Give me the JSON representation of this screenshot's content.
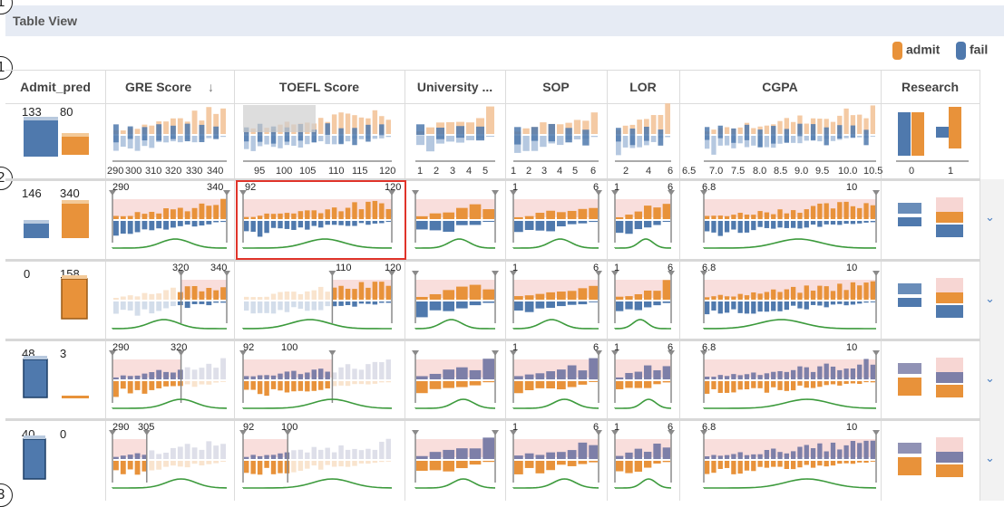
{
  "panel_title": "Table View",
  "markers": [
    "1",
    "1",
    "2",
    "3"
  ],
  "legend": [
    {
      "label": "admit",
      "color": "#e8923a"
    },
    {
      "label": "fail",
      "color": "#4f79ad"
    }
  ],
  "columns": [
    {
      "label": "Admit_pred"
    },
    {
      "label": "GRE Score",
      "sort_icon": "↓"
    },
    {
      "label": "TOEFL Score"
    },
    {
      "label": "University ..."
    },
    {
      "label": "SOP"
    },
    {
      "label": "LOR"
    },
    {
      "label": "CGPA"
    },
    {
      "label": "Research"
    }
  ],
  "axes": {
    "gre": [
      "290",
      "300",
      "310",
      "320",
      "330",
      "340"
    ],
    "toefl": [
      "95",
      "100",
      "105",
      "110",
      "115",
      "120"
    ],
    "univ": [
      "1",
      "2",
      "3",
      "4",
      "5"
    ],
    "sop": [
      "1",
      "2",
      "3",
      "4",
      "5",
      "6"
    ],
    "lor": [
      "2",
      "4",
      "6"
    ],
    "cgpa": [
      "6.5",
      "7.0",
      "7.5",
      "8.0",
      "8.5",
      "9.0",
      "9.5",
      "10.0",
      "10.5"
    ],
    "research": [
      "0",
      "1"
    ]
  },
  "rows": [
    {
      "fail_count": "133",
      "admit_count": "80"
    },
    {
      "fail_count": "146",
      "admit_count": "340",
      "gre_range": [
        "290",
        "340"
      ],
      "toefl_range": [
        "92",
        "120"
      ],
      "sop_range": [
        "1",
        "6"
      ],
      "lor_range": [
        "1",
        "6"
      ],
      "cgpa_range": [
        "6.8",
        "10"
      ]
    },
    {
      "fail_count": "0",
      "admit_count": "158",
      "gre_range": [
        "320",
        "340"
      ],
      "toefl_range": [
        "110",
        "120"
      ],
      "sop_range": [
        "1",
        "6"
      ],
      "lor_range": [
        "1",
        "6"
      ],
      "cgpa_range": [
        "6.8",
        "10"
      ]
    },
    {
      "fail_count": "48",
      "admit_count": "3",
      "gre_range": [
        "290",
        "320"
      ],
      "toefl_range": [
        "92",
        "100"
      ],
      "sop_range": [
        "1",
        "6"
      ],
      "lor_range": [
        "1",
        "6"
      ],
      "cgpa_range": [
        "6.8",
        "10"
      ]
    },
    {
      "fail_count": "40",
      "admit_count": "0",
      "gre_range": [
        "290",
        "305"
      ],
      "toefl_range": [
        "92",
        "100"
      ],
      "sop_range": [
        "1",
        "6"
      ],
      "lor_range": [
        "1",
        "6"
      ],
      "cgpa_range": [
        "6.8",
        "10"
      ]
    }
  ],
  "expand_icon": "chevron-down-icon",
  "expand_glyph": "⌄",
  "colors": {
    "admit": "#e8923a",
    "fail": "#4f79ad",
    "highlight": "#f7d6d3",
    "density": "#3c9a3c",
    "selection": "#e0342a"
  }
}
